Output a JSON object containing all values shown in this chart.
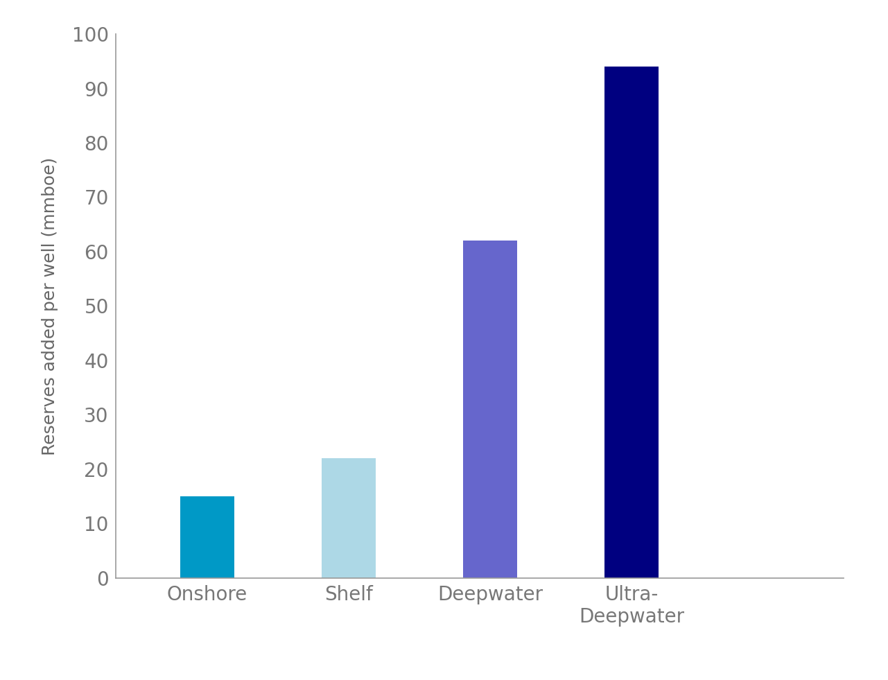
{
  "categories": [
    "Onshore",
    "Shelf",
    "Deepwater",
    "Ultra-\nDeepwater"
  ],
  "values": [
    15,
    22,
    62,
    94
  ],
  "bar_colors": [
    "#0099C6",
    "#ADD8E6",
    "#6666CC",
    "#000080"
  ],
  "ylabel": "Reserves added per well (mmboe)",
  "ylim": [
    0,
    100
  ],
  "yticks": [
    0,
    10,
    20,
    30,
    40,
    50,
    60,
    70,
    80,
    90,
    100
  ],
  "background_color": "#ffffff",
  "bar_width": 0.38,
  "ylabel_fontsize": 18,
  "tick_fontsize": 20,
  "xlabel_fontsize": 20,
  "left_spine_color": "#999999",
  "bottom_spine_color": "#999999"
}
